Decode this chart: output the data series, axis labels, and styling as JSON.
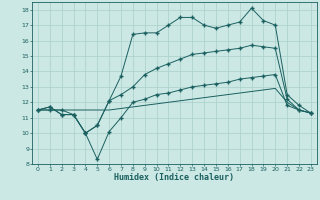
{
  "xlabel": "Humidex (Indice chaleur)",
  "background_color": "#cce8e4",
  "grid_color": "#aacfca",
  "line_color": "#1a6060",
  "xlim": [
    -0.5,
    23.5
  ],
  "ylim": [
    8,
    18.5
  ],
  "xticks": [
    0,
    1,
    2,
    3,
    4,
    5,
    6,
    7,
    8,
    9,
    10,
    11,
    12,
    13,
    14,
    15,
    16,
    17,
    18,
    19,
    20,
    21,
    22,
    23
  ],
  "yticks": [
    8,
    9,
    10,
    11,
    12,
    13,
    14,
    15,
    16,
    17,
    18
  ],
  "line1_x": [
    0,
    1,
    2,
    3,
    4,
    5,
    6,
    7,
    8,
    9,
    10,
    11,
    12,
    13,
    14,
    15,
    16,
    17,
    18,
    19,
    20,
    21,
    22,
    23
  ],
  "line1_y": [
    11.5,
    11.7,
    11.2,
    11.2,
    10.0,
    10.5,
    12.1,
    13.7,
    16.4,
    16.5,
    16.5,
    17.0,
    17.5,
    17.5,
    17.0,
    16.8,
    17.0,
    17.2,
    18.1,
    17.3,
    17.0,
    12.5,
    11.8,
    11.3
  ],
  "line2_x": [
    0,
    1,
    2,
    3,
    4,
    5,
    6,
    7,
    8,
    9,
    10,
    11,
    12,
    13,
    14,
    15,
    16,
    17,
    18,
    19,
    20,
    21,
    22,
    23
  ],
  "line2_y": [
    11.5,
    11.7,
    11.2,
    11.2,
    10.0,
    10.5,
    12.1,
    12.5,
    13.0,
    13.8,
    14.2,
    14.5,
    14.8,
    15.1,
    15.2,
    15.3,
    15.4,
    15.5,
    15.7,
    15.6,
    15.5,
    12.2,
    11.5,
    11.3
  ],
  "line3_x": [
    0,
    1,
    2,
    3,
    4,
    5,
    6,
    7,
    8,
    9,
    10,
    11,
    12,
    13,
    14,
    15,
    16,
    17,
    18,
    19,
    20,
    21,
    22,
    23
  ],
  "line3_y": [
    11.5,
    11.5,
    11.5,
    11.5,
    11.5,
    11.5,
    11.5,
    11.6,
    11.7,
    11.8,
    11.9,
    12.0,
    12.1,
    12.2,
    12.3,
    12.4,
    12.5,
    12.6,
    12.7,
    12.8,
    12.9,
    12.0,
    11.5,
    11.3
  ],
  "line4_x": [
    0,
    1,
    2,
    3,
    4,
    5,
    6,
    7,
    8,
    9,
    10,
    11,
    12,
    13,
    14,
    15,
    16,
    17,
    18,
    19,
    20,
    21,
    22,
    23
  ],
  "line4_y": [
    11.5,
    11.5,
    11.5,
    11.2,
    10.0,
    8.3,
    10.1,
    11.0,
    12.0,
    12.2,
    12.5,
    12.6,
    12.8,
    13.0,
    13.1,
    13.2,
    13.3,
    13.5,
    13.6,
    13.7,
    13.8,
    11.8,
    11.5,
    11.3
  ]
}
